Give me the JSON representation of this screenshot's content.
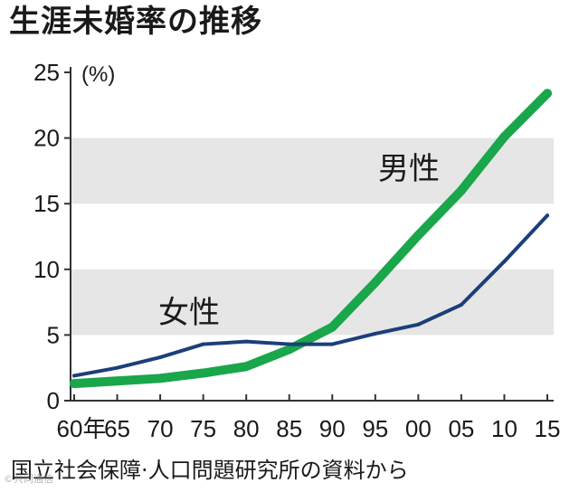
{
  "title": "生涯未婚率の推移",
  "source": "国立社会保障·人口問題研究所の資料から",
  "watermark": "©共同通信",
  "colors": {
    "male": "#1aa64a",
    "female": "#1c3f7a",
    "band": "#e6e6e6",
    "axis": "#333333"
  },
  "chart_data": {
    "type": "line",
    "title": "生涯未婚率の推移",
    "ylabel": "(%)",
    "xlabel": "",
    "ylim": [
      0,
      25
    ],
    "y_ticks": [
      "0",
      "5",
      "10",
      "15",
      "20",
      "25"
    ],
    "categories": [
      "60年",
      "65",
      "70",
      "75",
      "80",
      "85",
      "90",
      "95",
      "00",
      "05",
      "10",
      "15"
    ],
    "series": [
      {
        "name": "男性",
        "values": [
          1.3,
          1.5,
          1.7,
          2.1,
          2.6,
          3.9,
          5.6,
          9.0,
          12.6,
          16.0,
          20.1,
          23.4
        ]
      },
      {
        "name": "女性",
        "values": [
          1.9,
          2.5,
          3.3,
          4.3,
          4.5,
          4.3,
          4.3,
          5.1,
          5.8,
          7.3,
          10.6,
          14.1
        ]
      }
    ],
    "shaded_bands": [
      [
        5,
        10
      ],
      [
        15,
        20
      ]
    ],
    "legend": "inline labels"
  }
}
